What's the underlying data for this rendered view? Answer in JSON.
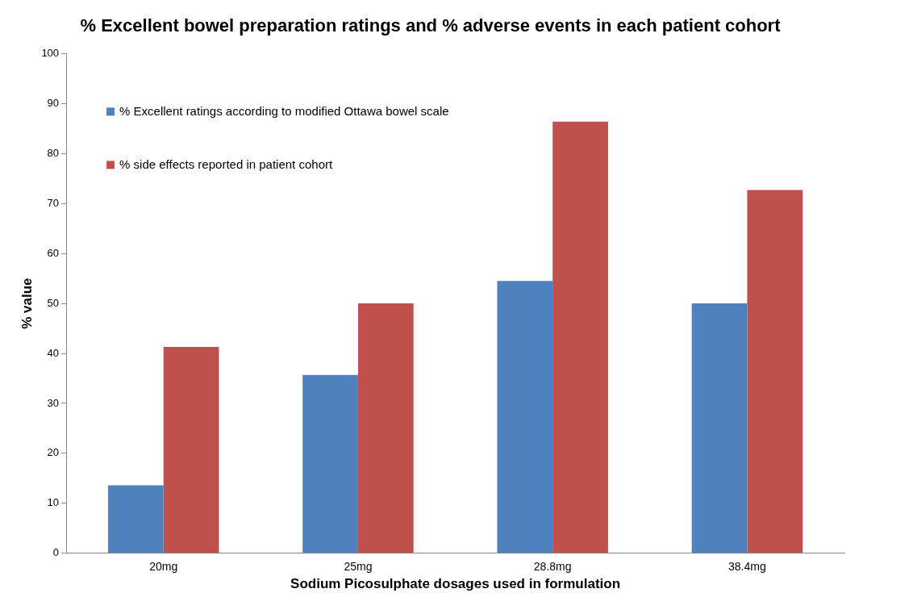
{
  "chart_data": {
    "type": "bar",
    "title": "% Excellent bowel preparation ratings and % adverse events in each patient cohort",
    "xlabel": "Sodium Picosulphate dosages used in formulation",
    "ylabel": "% value",
    "categories": [
      "20mg",
      "25mg",
      "28.8mg",
      "38.4mg"
    ],
    "series": [
      {
        "name": "% Excellent ratings according to modified Ottawa bowel scale",
        "color": "#4f81bd",
        "values": [
          13.6,
          35.7,
          54.5,
          50
        ]
      },
      {
        "name": "% side effects reported in patient cohort",
        "color": "#c0504d",
        "values": [
          41.3,
          50,
          86.4,
          72.7
        ]
      }
    ],
    "ylim": [
      0,
      100
    ],
    "yticks": [
      0,
      10,
      20,
      30,
      40,
      50,
      60,
      70,
      80,
      90,
      100
    ],
    "grid": false,
    "legend": "top left"
  }
}
